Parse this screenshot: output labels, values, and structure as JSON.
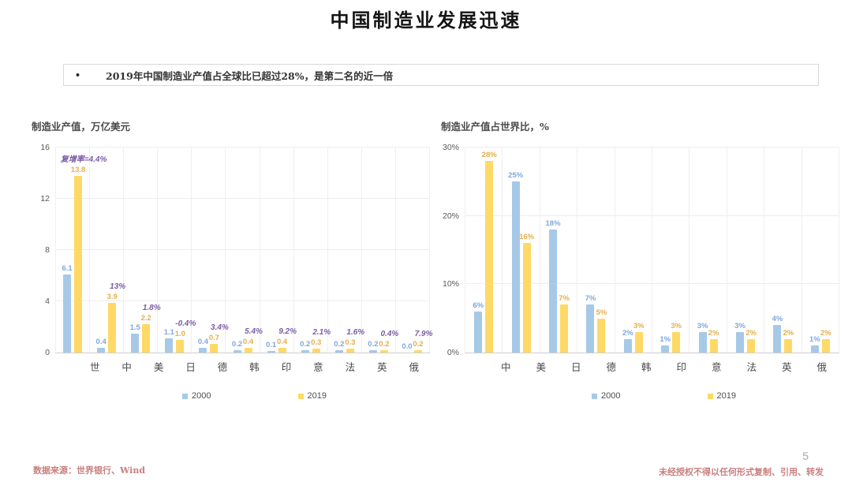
{
  "page": {
    "title": "中国制造业发展迅速",
    "bullet_marker": "•",
    "bullet_text": "2019年中国制造业产值占全球比已超过28%，是第二名的近一倍",
    "page_number": "5",
    "footer_source": "数据来源：世界银行、Wind",
    "footer_disclaimer": "未经授权不得以任何形式复制、引用、转发"
  },
  "colors": {
    "bar_2000": "#A6C9E8",
    "bar_2019": "#FFD966",
    "label_2000": "#7FA8DC",
    "label_2019": "#E3AF4B",
    "annotation": "#7C5CA8",
    "grid": "#EDEDED",
    "axis_line": "#CFCFCF",
    "footer_red": "#C97F7F"
  },
  "chart_data": [
    {
      "type": "bar",
      "title": "制造业产值，万亿美元",
      "categories": [
        "世",
        "中",
        "美",
        "日",
        "德",
        "韩",
        "印",
        "意",
        "法",
        "英",
        "俄"
      ],
      "series": [
        {
          "name": "2000",
          "values": [
            6.1,
            0.4,
            1.5,
            1.1,
            0.4,
            0.2,
            0.1,
            0.2,
            0.2,
            0.2,
            0.0
          ],
          "labels": [
            "6.1",
            "0.4",
            "1.5",
            "1.1",
            "0.4",
            "0.2",
            "0.1",
            "0.2",
            "0.2",
            "0.2",
            "0.0"
          ]
        },
        {
          "name": "2019",
          "values": [
            13.8,
            3.9,
            2.2,
            1.0,
            0.7,
            0.4,
            0.4,
            0.3,
            0.3,
            0.2,
            0.2
          ],
          "labels": [
            "13.8",
            "3.9",
            "2.2",
            "1.0",
            "0.7",
            "0.4",
            "0.4",
            "0.3",
            "0.3",
            "0.2",
            "0.2"
          ]
        }
      ],
      "annotations": [
        "复增率=4.4%",
        "13%",
        "1.8%",
        "-0.4%",
        "3.4%",
        "5.4%",
        "9.2%",
        "2.1%",
        "1.6%",
        "0.4%",
        "7.9%"
      ],
      "ylim": [
        0,
        16
      ],
      "yticks": [
        {
          "value": 0,
          "label": "0"
        },
        {
          "value": 4,
          "label": "4"
        },
        {
          "value": 8,
          "label": "8"
        },
        {
          "value": 12,
          "label": "12"
        },
        {
          "value": 16,
          "label": "16"
        }
      ],
      "grid": true,
      "legend_position": "bottom",
      "legend": [
        "2000",
        "2019"
      ]
    },
    {
      "type": "bar",
      "title": "制造业产值占世界比，%",
      "categories": [
        "中",
        "美",
        "日",
        "德",
        "韩",
        "印",
        "意",
        "法",
        "英",
        "俄"
      ],
      "series": [
        {
          "name": "2000",
          "values": [
            6,
            25,
            18,
            7,
            2,
            1,
            3,
            3,
            4,
            1
          ],
          "labels": [
            "6%",
            "25%",
            "18%",
            "7%",
            "2%",
            "1%",
            "3%",
            "3%",
            "4%",
            "1%"
          ]
        },
        {
          "name": "2019",
          "values": [
            28,
            16,
            7,
            5,
            3,
            3,
            2,
            2,
            2,
            2
          ],
          "labels": [
            "28%",
            "16%",
            "7%",
            "5%",
            "3%",
            "3%",
            "2%",
            "2%",
            "2%",
            "2%"
          ]
        }
      ],
      "annotations": null,
      "ylim": [
        0,
        30
      ],
      "yticks": [
        {
          "value": 0,
          "label": "0%"
        },
        {
          "value": 10,
          "label": "10%"
        },
        {
          "value": 20,
          "label": "20%"
        },
        {
          "value": 30,
          "label": "30%"
        }
      ],
      "grid": true,
      "legend_position": "bottom",
      "legend": [
        "2000",
        "2019"
      ]
    }
  ]
}
